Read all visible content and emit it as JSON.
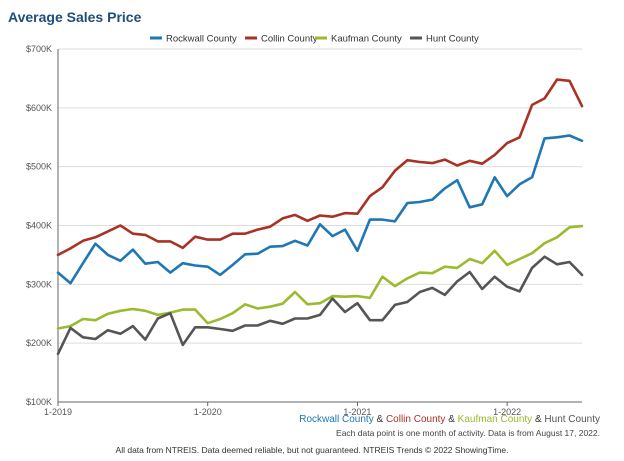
{
  "chart_data": {
    "type": "line",
    "title": "Average Sales Price",
    "x": [
      "1-2019",
      "2-2019",
      "3-2019",
      "4-2019",
      "5-2019",
      "6-2019",
      "7-2019",
      "8-2019",
      "9-2019",
      "10-2019",
      "11-2019",
      "12-2019",
      "1-2020",
      "2-2020",
      "3-2020",
      "4-2020",
      "5-2020",
      "6-2020",
      "7-2020",
      "8-2020",
      "9-2020",
      "10-2020",
      "11-2020",
      "12-2020",
      "1-2021",
      "2-2021",
      "3-2021",
      "4-2021",
      "5-2021",
      "6-2021",
      "7-2021",
      "8-2021",
      "9-2021",
      "10-2021",
      "11-2021",
      "12-2021",
      "1-2022",
      "2-2022",
      "3-2022",
      "4-2022",
      "5-2022",
      "6-2022",
      "7-2022"
    ],
    "x_tick_labels": [
      "1-2019",
      "1-2020",
      "1-2021",
      "1-2022"
    ],
    "x_tick_indices": [
      0,
      12,
      24,
      36
    ],
    "y_ticks": [
      100000,
      200000,
      300000,
      400000,
      500000,
      600000,
      700000
    ],
    "y_tick_labels": [
      "$100K",
      "$200K",
      "$300K",
      "$400K",
      "$500K",
      "$600K",
      "$700K"
    ],
    "ylim": [
      100000,
      700000
    ],
    "legend_position": "top",
    "grid": true,
    "series": [
      {
        "name": "Rockwall County",
        "color": "#1f77b4",
        "values": [
          320000,
          302000,
          336000,
          369000,
          350000,
          340000,
          359000,
          335000,
          338000,
          320000,
          336000,
          332000,
          330000,
          316000,
          333000,
          351000,
          352000,
          364000,
          365000,
          374000,
          366000,
          402000,
          382000,
          393000,
          357000,
          410000,
          410000,
          407000,
          438000,
          440000,
          444000,
          463000,
          477000,
          431000,
          436000,
          482000,
          450000,
          470000,
          482000,
          548000,
          550000,
          553000,
          544000
        ]
      },
      {
        "name": "Collin County",
        "color": "#a93226",
        "values": [
          350000,
          361000,
          374000,
          380000,
          390000,
          400000,
          386000,
          384000,
          373000,
          373000,
          362000,
          381000,
          376000,
          376000,
          386000,
          386000,
          393000,
          398000,
          412000,
          418000,
          408000,
          417000,
          415000,
          421000,
          420000,
          450000,
          465000,
          493000,
          511000,
          508000,
          506000,
          512000,
          502000,
          510000,
          505000,
          520000,
          540000,
          550000,
          605000,
          616000,
          648000,
          646000,
          603000
        ]
      },
      {
        "name": "Kaufman County",
        "color": "#9bbb2f",
        "values": [
          225000,
          229000,
          241000,
          239000,
          250000,
          255000,
          258000,
          255000,
          248000,
          252000,
          257000,
          257000,
          234000,
          241000,
          251000,
          266000,
          259000,
          262000,
          267000,
          287000,
          266000,
          268000,
          280000,
          279000,
          280000,
          277000,
          313000,
          297000,
          310000,
          320000,
          319000,
          330000,
          328000,
          343000,
          336000,
          357000,
          333000,
          343000,
          353000,
          370000,
          380000,
          397000,
          399000
        ]
      },
      {
        "name": "Hunt County",
        "color": "#555555",
        "values": [
          182000,
          226000,
          210000,
          207000,
          222000,
          216000,
          229000,
          206000,
          242000,
          251000,
          197000,
          227000,
          227000,
          224000,
          221000,
          230000,
          230000,
          238000,
          233000,
          242000,
          242000,
          248000,
          276000,
          253000,
          268000,
          239000,
          239000,
          265000,
          270000,
          287000,
          294000,
          282000,
          305000,
          321000,
          292000,
          313000,
          296000,
          288000,
          328000,
          347000,
          334000,
          338000,
          316000
        ]
      }
    ]
  },
  "footer": {
    "series_names": [
      "Rockwall County",
      "Collin County",
      "Kaufman County",
      "Hunt County"
    ],
    "amp1": " & ",
    "amp2": " & ",
    "amp3": " & ",
    "note": "Each data point is one month of activity. Data is from August 17, 2022.",
    "disclaimer": "All data from NTREIS. Data deemed reliable, but not guaranteed. NTREIS Trends © 2022 ShowingTime."
  }
}
